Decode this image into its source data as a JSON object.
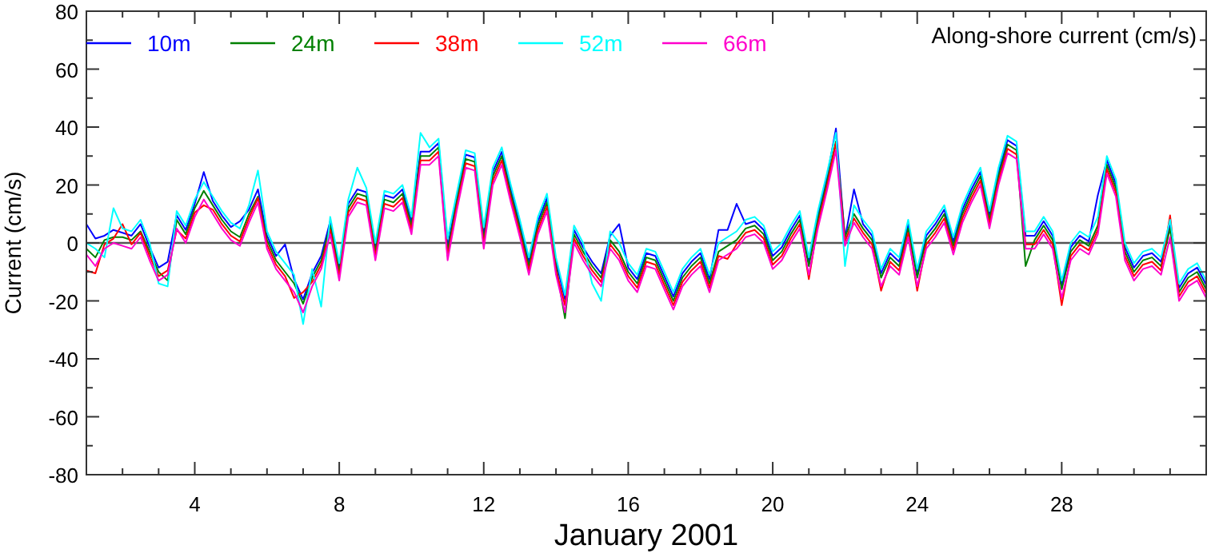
{
  "chart_data": {
    "type": "line",
    "xlabel": "January 2001",
    "ylabel": "Current (cm/s)",
    "annotations": [
      "Along-shore current (cm/s)"
    ],
    "legend": "top left",
    "grid": false,
    "marker": "none",
    "line_style": "solid",
    "xlim": [
      1,
      32
    ],
    "ylim": [
      -80,
      80
    ],
    "xticks": [
      {
        "value": 2,
        "label": null
      },
      {
        "value": 3,
        "label": null
      },
      4,
      {
        "value": 5,
        "label": null
      },
      {
        "value": 6,
        "label": null
      },
      {
        "value": 7,
        "label": null
      },
      8,
      {
        "value": 9,
        "label": null
      },
      {
        "value": 10,
        "label": null
      },
      {
        "value": 11,
        "label": null
      },
      12,
      {
        "value": 13,
        "label": null
      },
      {
        "value": 14,
        "label": null
      },
      {
        "value": 15,
        "label": null
      },
      16,
      {
        "value": 17,
        "label": null
      },
      {
        "value": 18,
        "label": null
      },
      {
        "value": 19,
        "label": null
      },
      20,
      {
        "value": 21,
        "label": null
      },
      {
        "value": 22,
        "label": null
      },
      {
        "value": 23,
        "label": null
      },
      24,
      {
        "value": 25,
        "label": null
      },
      {
        "value": 26,
        "label": null
      },
      {
        "value": 27,
        "label": null
      },
      28,
      {
        "value": 29,
        "label": null
      },
      {
        "value": 30,
        "label": null
      },
      {
        "value": 31,
        "label": null
      }
    ],
    "yticks": [
      -80,
      {
        "value": -70,
        "label": null
      },
      -60,
      {
        "value": -50,
        "label": null
      },
      -40,
      {
        "value": -30,
        "label": null
      },
      -20,
      {
        "value": -10,
        "label": null
      },
      0,
      {
        "value": 10,
        "label": null
      },
      20,
      {
        "value": 30,
        "label": null
      },
      40,
      {
        "value": 50,
        "label": null
      },
      60,
      {
        "value": 70,
        "label": null
      },
      80
    ],
    "ref_lines": [
      {
        "axis": "y",
        "value": 0,
        "label": null,
        "color": "#555555"
      }
    ],
    "x": [
      1,
      1.25,
      1.5,
      1.75,
      2,
      2.25,
      2.5,
      2.75,
      3,
      3.25,
      3.5,
      3.75,
      4,
      4.25,
      4.5,
      4.75,
      5,
      5.25,
      5.5,
      5.75,
      6,
      6.25,
      6.5,
      6.75,
      7,
      7.25,
      7.5,
      7.75,
      8,
      8.25,
      8.5,
      8.75,
      9,
      9.25,
      9.5,
      9.75,
      10,
      10.25,
      10.5,
      10.75,
      11,
      11.25,
      11.5,
      11.75,
      12,
      12.25,
      12.5,
      12.75,
      13,
      13.25,
      13.5,
      13.75,
      14,
      14.25,
      14.5,
      14.75,
      15,
      15.25,
      15.5,
      15.75,
      16,
      16.25,
      16.5,
      16.75,
      17,
      17.25,
      17.5,
      17.75,
      18,
      18.25,
      18.5,
      18.75,
      19,
      19.25,
      19.5,
      19.75,
      20,
      20.25,
      20.5,
      20.75,
      21,
      21.25,
      21.5,
      21.75,
      22,
      22.25,
      22.5,
      22.75,
      23,
      23.25,
      23.5,
      23.75,
      24,
      24.25,
      24.5,
      24.75,
      25,
      25.25,
      25.5,
      25.75,
      26,
      26.25,
      26.5,
      26.75,
      27,
      27.25,
      27.5,
      27.75,
      28,
      28.25,
      28.5,
      28.75,
      29,
      29.25,
      29.5,
      29.75,
      30,
      30.25,
      30.5,
      30.75,
      31,
      31.25,
      31.5,
      31.75,
      32
    ],
    "series": [
      {
        "name": "10m",
        "color": "#0000ff",
        "values": [
          6.5,
          1.5,
          2.5,
          4.5,
          3.5,
          2.5,
          6.5,
          -1.5,
          -8.5,
          -6.5,
          9.5,
          4.5,
          13.5,
          24.5,
          14.5,
          9.5,
          5.5,
          7.5,
          11.5,
          18.5,
          2.5,
          -4.5,
          -0.5,
          -12.5,
          -19.5,
          -10.5,
          -4.5,
          7.5,
          -8.5,
          13.5,
          18.5,
          17.5,
          -1.5,
          16.5,
          15.5,
          18.5,
          7.5,
          31.5,
          31.5,
          34.5,
          -1.5,
          15.5,
          30.5,
          29.5,
          2.5,
          24.5,
          31.5,
          18.5,
          6.5,
          -6.5,
          7.5,
          15.5,
          -6.5,
          -19.5,
          4.5,
          -1.5,
          -6.5,
          -10.5,
          2.5,
          6.5,
          -8.5,
          -12.5,
          -3.5,
          -4.5,
          -11.5,
          -18.5,
          -10.5,
          -6.5,
          -3.5,
          -12.5,
          4.5,
          4.5,
          13.5,
          6.5,
          7.5,
          4.5,
          -4.5,
          -1.5,
          4.5,
          9.5,
          -6.5,
          9.5,
          22.5,
          39.5,
          1.5,
          18.5,
          6.5,
          2.5,
          -10.5,
          -3.5,
          -6.5,
          6.5,
          -10.5,
          2.5,
          6.5,
          11.5,
          0.5,
          11.5,
          18.5,
          24.5,
          9.5,
          24.5,
          35.5,
          33.5,
          2.5,
          2.5,
          7.5,
          2.5,
          -14.5,
          -1.5,
          2.5,
          0.5,
          16.5,
          28.5,
          20.5,
          -1.5,
          -8.5,
          -4.5,
          -3.5,
          -6.5,
          6.5,
          -15.5,
          -10.5,
          -8.5,
          -14.5
        ]
      },
      {
        "name": "24m",
        "color": "#008000",
        "values": [
          -2,
          -5,
          1,
          2,
          2,
          1,
          4,
          -3,
          -10,
          -13,
          8,
          3,
          12,
          18,
          13,
          8,
          4,
          2,
          10,
          16,
          1,
          -6,
          -10,
          -14,
          -21,
          -12,
          -6,
          6,
          -10,
          12,
          17,
          16,
          -3,
          15,
          14,
          17,
          6,
          30,
          30,
          33,
          -3,
          14,
          29,
          28,
          1,
          23,
          30,
          17,
          5,
          -8,
          6,
          14,
          -8,
          -26,
          3,
          -3,
          -8,
          -12,
          1,
          -3,
          -10,
          -14,
          -5,
          -6,
          -13,
          -20,
          -12,
          -8,
          -5,
          -14,
          -3,
          -1,
          1,
          5,
          6,
          3,
          -6,
          -3,
          3,
          8,
          -8,
          8,
          21,
          35,
          2,
          10,
          5,
          1,
          -12,
          -5,
          -8,
          5,
          -12,
          1,
          5,
          10,
          -1,
          10,
          17,
          23,
          8,
          23,
          34,
          32,
          -8,
          1,
          6,
          1,
          -16,
          -3,
          1,
          -1,
          6,
          27,
          19,
          -3,
          -10,
          -6,
          -5,
          -8,
          5,
          -17,
          -12,
          -10,
          -16
        ]
      },
      {
        "name": "38m",
        "color": "#ff0000",
        "values": [
          -9.5,
          -10.5,
          -0.5,
          1.5,
          6.5,
          -0.5,
          3.5,
          -4.5,
          -11.5,
          -9.5,
          4.5,
          1.5,
          10.5,
          13,
          11.5,
          6.5,
          2.5,
          0.5,
          8.5,
          15.5,
          -0.5,
          -7.5,
          -11.5,
          -19,
          -17,
          -13.5,
          -7.5,
          4.5,
          -11.5,
          10.5,
          15.5,
          14.5,
          -4.5,
          13.5,
          12.5,
          15.5,
          4.5,
          28.5,
          28.5,
          31.5,
          -4.5,
          12.5,
          27.5,
          26.5,
          -0.5,
          21.5,
          28.5,
          15.5,
          3.5,
          -9.5,
          4.5,
          12.5,
          -9.5,
          -21.5,
          1.5,
          -4.5,
          -9.5,
          -13.5,
          -0.5,
          -4.5,
          -11.5,
          -15.5,
          -6.5,
          -7.5,
          -14.5,
          -21.5,
          -13.5,
          -9.5,
          -6.5,
          -15.5,
          -4.5,
          -5.5,
          -0.5,
          3.5,
          4.5,
          1.5,
          -7.5,
          -4.5,
          1.5,
          6.5,
          -12.5,
          6.5,
          19.5,
          34.5,
          0.5,
          8.5,
          3.5,
          -0.5,
          -16.5,
          -6.5,
          -9.5,
          3.5,
          -16.5,
          -0.5,
          3.5,
          8.5,
          -2.5,
          8.5,
          15.5,
          21.5,
          6.5,
          21.5,
          32.5,
          30.5,
          -0.5,
          -0.5,
          4.5,
          -0.5,
          -21.5,
          -4.5,
          -0.5,
          -2.5,
          4.5,
          25.5,
          17.5,
          -4.5,
          -11.5,
          -7.5,
          -6.5,
          -9.5,
          9.5,
          -18.5,
          -13.5,
          -11.5,
          -17.5
        ]
      },
      {
        "name": "52m",
        "color": "#00ffff",
        "values": [
          0,
          -2,
          -5,
          12,
          5,
          4,
          8,
          0,
          -14,
          -15,
          11,
          6,
          15,
          21,
          16,
          11,
          7,
          5,
          13,
          25,
          4,
          -3,
          -7,
          -11,
          -28,
          -9,
          -22,
          9,
          -7,
          15,
          26,
          19,
          0,
          18,
          17,
          20,
          9,
          38,
          33,
          36,
          1.5,
          17,
          32,
          31,
          5.5,
          26,
          33,
          20,
          8,
          -5,
          9,
          17,
          -5,
          -18,
          6,
          0,
          -14,
          -20,
          4,
          0,
          -7,
          -11,
          -2,
          -3,
          -10,
          -17,
          -9,
          -5,
          -2,
          -11,
          0,
          2,
          4,
          8,
          9,
          6,
          -3,
          0,
          6,
          11,
          -5,
          11,
          24,
          38,
          -8,
          13,
          8,
          4,
          -9,
          -2,
          -5,
          8,
          -9,
          4,
          8,
          13,
          2,
          13,
          20,
          26,
          11,
          26,
          37,
          35,
          4,
          4,
          9,
          4,
          -13,
          0,
          4,
          2,
          9,
          30,
          22,
          0,
          -7,
          -3,
          -2,
          -5,
          8,
          -14,
          -9,
          -7,
          -13
        ]
      },
      {
        "name": "66m",
        "color": "#ff00cc",
        "values": [
          -4,
          -8,
          -2,
          0,
          -1,
          -2,
          2,
          -6,
          -13,
          -11,
          5,
          0,
          9,
          15,
          10,
          5,
          1,
          -1,
          7,
          14,
          -2,
          -9,
          -13,
          -17,
          -24,
          -15,
          -9,
          3,
          -13,
          9,
          14,
          13,
          -6,
          12,
          11,
          14,
          3,
          27,
          27,
          30,
          -6,
          11,
          26,
          25,
          -2,
          20,
          27,
          14,
          2,
          -11,
          3,
          11,
          -11,
          -24,
          0,
          -6,
          -11,
          -15,
          -2,
          -6,
          -13,
          -17,
          -8,
          -9,
          -16,
          -23,
          -15,
          -11,
          -8,
          -17,
          -6,
          -4,
          -2,
          2,
          3,
          0,
          -9,
          -6,
          0,
          5,
          -11,
          5,
          18,
          32,
          -1,
          7,
          2,
          -2,
          -15,
          -8,
          -11,
          2,
          -15,
          -2,
          2,
          7,
          -4,
          7,
          14,
          20,
          5,
          20,
          31,
          29,
          -2,
          -2,
          3,
          -2,
          -19,
          -6,
          -2,
          -4,
          3,
          24,
          16,
          -6,
          -13,
          -9,
          -8,
          -11,
          2,
          -20,
          -15,
          -13,
          -19
        ]
      }
    ]
  }
}
